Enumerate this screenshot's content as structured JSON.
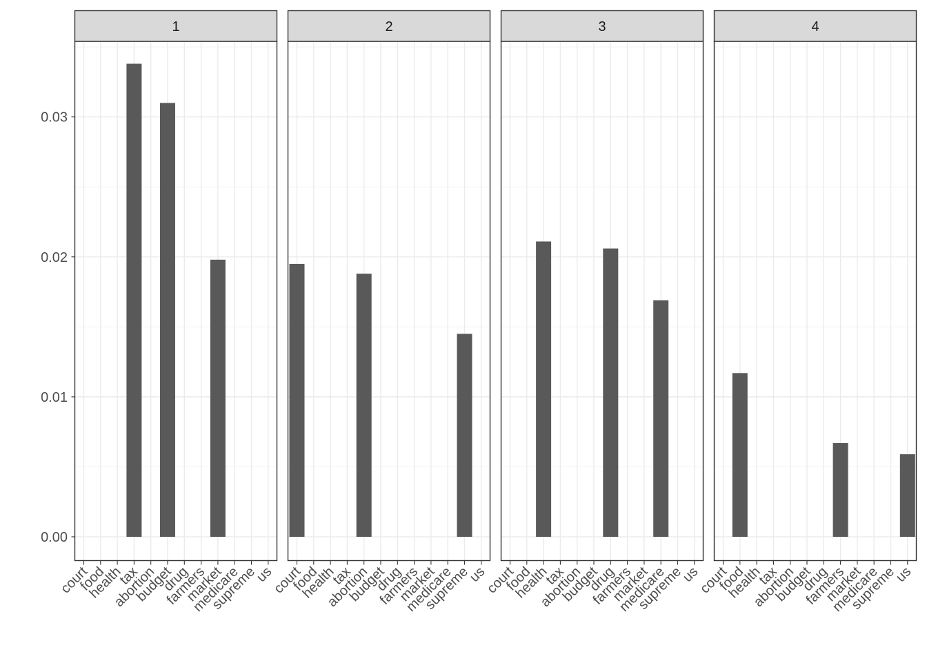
{
  "chart_data": {
    "type": "bar",
    "categories": [
      "court",
      "food",
      "health",
      "tax",
      "abortion",
      "budget",
      "drug",
      "farmers",
      "market",
      "medicare",
      "supreme",
      "us"
    ],
    "ylim": [
      -0.0017,
      0.0354
    ],
    "yticks": [
      0.0,
      0.01,
      0.02,
      0.03
    ],
    "ytick_labels": [
      "0.00",
      "0.01",
      "0.02",
      "0.03"
    ],
    "grid": true,
    "bar_color": "#595959",
    "facets": [
      {
        "label": "1",
        "bars": [
          {
            "category": "tax",
            "value": 0.0338
          },
          {
            "category": "budget",
            "value": 0.031
          },
          {
            "category": "market",
            "value": 0.0198
          }
        ]
      },
      {
        "label": "2",
        "bars": [
          {
            "category": "court",
            "value": 0.0195
          },
          {
            "category": "abortion",
            "value": 0.0188
          },
          {
            "category": "supreme",
            "value": 0.0145
          }
        ]
      },
      {
        "label": "3",
        "bars": [
          {
            "category": "health",
            "value": 0.0211
          },
          {
            "category": "drug",
            "value": 0.0206
          },
          {
            "category": "medicare",
            "value": 0.0169
          }
        ]
      },
      {
        "label": "4",
        "bars": [
          {
            "category": "food",
            "value": 0.0117
          },
          {
            "category": "farmers",
            "value": 0.0067
          },
          {
            "category": "us",
            "value": 0.0059
          }
        ]
      }
    ]
  }
}
